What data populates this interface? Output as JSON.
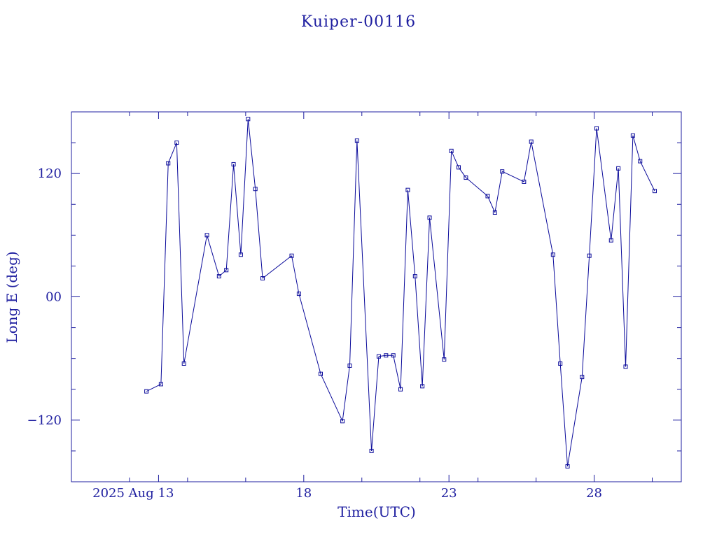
{
  "chart_data": {
    "type": "line",
    "title": "Kuiper-00116",
    "xlabel": "Time(UTC)",
    "ylabel": "Long E (deg)",
    "xlim": [
      "2025-08-10",
      "2025-08-31"
    ],
    "ylim": [
      -180,
      180
    ],
    "grid": false,
    "x_ticks": [
      {
        "date": "2025-08-13",
        "label": "2025 Aug 13"
      },
      {
        "date": "2025-08-18",
        "label": "18"
      },
      {
        "date": "2025-08-23",
        "label": "23"
      },
      {
        "date": "2025-08-28",
        "label": "28"
      }
    ],
    "y_ticks": [
      {
        "value": 120,
        "label": "120"
      },
      {
        "value": 0,
        "label": "00"
      },
      {
        "value": -120,
        "label": "−120"
      }
    ],
    "series": [
      {
        "marker": "square",
        "x": [
          "2025-08-12T14:00",
          "2025-08-13T02:00",
          "2025-08-13T08:00",
          "2025-08-13T15:00",
          "2025-08-13T21:00",
          "2025-08-14T16:00",
          "2025-08-15T02:00",
          "2025-08-15T08:00",
          "2025-08-15T14:00",
          "2025-08-15T20:00",
          "2025-08-16T02:00",
          "2025-08-16T08:00",
          "2025-08-16T14:00",
          "2025-08-17T14:00",
          "2025-08-17T20:00",
          "2025-08-18T14:00",
          "2025-08-19T08:00",
          "2025-08-19T14:00",
          "2025-08-19T20:00",
          "2025-08-20T08:00",
          "2025-08-20T14:00",
          "2025-08-20T20:00",
          "2025-08-21T02:00",
          "2025-08-21T08:00",
          "2025-08-21T14:00",
          "2025-08-21T20:00",
          "2025-08-22T02:00",
          "2025-08-22T08:00",
          "2025-08-22T20:00",
          "2025-08-23T02:00",
          "2025-08-23T08:00",
          "2025-08-23T14:00",
          "2025-08-24T08:00",
          "2025-08-24T14:00",
          "2025-08-24T20:00",
          "2025-08-25T14:00",
          "2025-08-25T20:00",
          "2025-08-26T14:00",
          "2025-08-26T20:00",
          "2025-08-27T02:00",
          "2025-08-27T14:00",
          "2025-08-27T20:00",
          "2025-08-28T02:00",
          "2025-08-28T14:00",
          "2025-08-28T20:00",
          "2025-08-29T02:00",
          "2025-08-29T08:00",
          "2025-08-29T14:00",
          "2025-08-30T02:00"
        ],
        "y": [
          -92,
          -85,
          130,
          150,
          -65,
          60,
          20,
          26,
          129,
          41,
          173,
          105,
          18,
          40,
          3,
          -75,
          -121,
          -67,
          152,
          -150,
          -58,
          -57,
          -57,
          -90,
          104,
          20,
          -87,
          77,
          -61,
          142,
          126,
          116,
          98,
          82,
          122,
          112,
          151,
          41,
          -65,
          -165,
          -78,
          40,
          164,
          55,
          125,
          -68,
          157,
          132,
          103
        ]
      }
    ]
  }
}
